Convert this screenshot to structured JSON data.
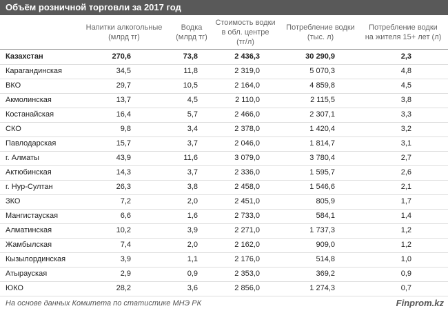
{
  "header": {
    "title": "Объём розничной торговли за 2017 год"
  },
  "table": {
    "columns": [
      "",
      "Напитки алкогольные\n(млрд тг)",
      "Водка\n(млрд тг)",
      "Стоимость водки\nв обл. центре\n(тг/л)",
      "Потребление водки\n(тыс. л)",
      "Потребление водки\nна жителя 15+ лет (л)"
    ],
    "rows": [
      [
        "Казахстан",
        "270,6",
        "73,8",
        "2 436,3",
        "30 290,9",
        "2,3"
      ],
      [
        "Карагандинская",
        "34,5",
        "11,8",
        "2 319,0",
        "5 070,3",
        "4,8"
      ],
      [
        "ВКО",
        "29,7",
        "10,5",
        "2 164,0",
        "4 859,8",
        "4,5"
      ],
      [
        "Акмолинская",
        "13,7",
        "4,5",
        "2 110,0",
        "2 115,5",
        "3,8"
      ],
      [
        "Костанайская",
        "16,4",
        "5,7",
        "2 466,0",
        "2 307,1",
        "3,3"
      ],
      [
        "СКО",
        "9,8",
        "3,4",
        "2 378,0",
        "1 420,4",
        "3,2"
      ],
      [
        "Павлодарская",
        "15,7",
        "3,7",
        "2 046,0",
        "1 814,7",
        "3,1"
      ],
      [
        "г. Алматы",
        "43,9",
        "11,6",
        "3 079,0",
        "3 780,4",
        "2,7"
      ],
      [
        "Актюбинская",
        "14,3",
        "3,7",
        "2 336,0",
        "1 595,7",
        "2,6"
      ],
      [
        "г. Нур-Султан",
        "26,3",
        "3,8",
        "2 458,0",
        "1 546,6",
        "2,1"
      ],
      [
        "ЗКО",
        "7,2",
        "2,0",
        "2 451,0",
        "805,9",
        "1,7"
      ],
      [
        "Мангистауская",
        "6,6",
        "1,6",
        "2 733,0",
        "584,1",
        "1,4"
      ],
      [
        "Алматинская",
        "10,2",
        "3,9",
        "2 271,0",
        "1 737,3",
        "1,2"
      ],
      [
        "Жамбылская",
        "7,4",
        "2,0",
        "2 162,0",
        "909,0",
        "1,2"
      ],
      [
        "Кызылординская",
        "3,9",
        "1,1",
        "2 176,0",
        "514,8",
        "1,0"
      ],
      [
        "Атырауская",
        "2,9",
        "0,9",
        "2 353,0",
        "369,2",
        "0,9"
      ],
      [
        "ЮКО",
        "28,2",
        "3,6",
        "2 856,0",
        "1 274,3",
        "0,7"
      ]
    ]
  },
  "footer": {
    "source": "На основе данных Комитета по статистике МНЭ РК",
    "brand": "Finprom.kz"
  }
}
